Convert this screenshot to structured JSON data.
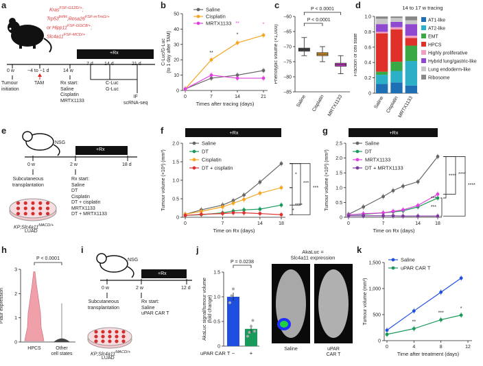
{
  "labels": [
    "a",
    "b",
    "c",
    "d",
    "e",
    "f",
    "g",
    "h",
    "i",
    "j",
    "k"
  ],
  "panel_a": {
    "genotype": [
      "Kras",
      "FSF-G12D/+",
      "Trp53",
      "frt/frt",
      "Rosa26",
      "FSF-mTmG/+",
      "or Hipp11",
      "FSF-GGC8/+",
      "Slc4a11",
      "FSF-MCD/+"
    ],
    "timeline_ticks": [
      "0 w",
      "~4 to ~1 d",
      "14 w",
      "7 d",
      "14 d",
      "21 d"
    ],
    "rx": "+Rx",
    "events": {
      "tumour": "Tumour\ninitiation",
      "tam": "TAM",
      "rx_start": "Rx start:\nSaline\nCisplatin\nMRTX1133",
      "cluc": "C-Luc\nG-Luc",
      "if": "IF\nscRNA-seq"
    }
  },
  "panel_e": {
    "nsg": "NSG",
    "ticks": [
      "0 w",
      "2 w",
      "18 d"
    ],
    "rx": "+Rx",
    "sub": "Subcutaneous\ntransplantation",
    "rx_start": "Rx start:\nSaline\nDT\nCisplatin\nDT + cisplatin\nMRTX1133\nDT + MRTX1133",
    "cells": "KP;Slc4a11",
    "cells_sup": "MACD/+",
    "cells2": "LUAD"
  },
  "panel_i": {
    "nsg": "NSG",
    "ticks": [
      "0 w",
      "2 w",
      "12 d"
    ],
    "rx": "+Rx",
    "sub": "Subcutaneous\ntransplantation",
    "rx_start": "Rx start:\nSaline\nuPAR CAR T",
    "cells": "KP;Slc4a11",
    "cells_sup": "MACD/+",
    "cells2": "LUAD"
  },
  "colors": {
    "saline": "#666666",
    "cisplatin": "#f5a623",
    "mrtx": "#e040e0",
    "dt": "#1a9a5a",
    "dtcis": "#e03030",
    "dtmrtx": "#7a3a9a",
    "blue": "#1f4fe0",
    "green": "#1a9a5a",
    "violin": "#f0a0a8"
  },
  "chart_data": [
    {
      "id": "b",
      "type": "line",
      "ylabel": "C-Luc/G-Luc\n(to 1 day after TAM)",
      "xlabel": "Times after tracing (days)",
      "x": [
        0,
        7,
        14,
        21
      ],
      "xticks": [
        "0",
        "7",
        "14",
        "21"
      ],
      "ylim": [
        0,
        50
      ],
      "yticks": [
        "0",
        "10",
        "20",
        "30",
        "40",
        "50"
      ],
      "series": [
        {
          "name": "Saline",
          "color": "saline",
          "values": [
            1,
            8,
            10,
            13
          ]
        },
        {
          "name": "Cisplatin",
          "color": "cisplatin",
          "values": [
            1,
            20,
            31,
            36
          ]
        },
        {
          "name": "MRTX1133",
          "color": "mrtx",
          "values": [
            1,
            10,
            8,
            8
          ]
        }
      ],
      "annotations": [
        "**",
        "*",
        "*",
        "**",
        "*"
      ]
    },
    {
      "id": "c",
      "type": "box",
      "ylabel": "Phenotypic volume (×1,000)",
      "categories": [
        "Saline",
        "Cisplatin",
        "MRTX1133"
      ],
      "ylim": [
        -85,
        -60
      ],
      "yticks": [
        "−85",
        "−80",
        "−75",
        "−70",
        "−65",
        "−60"
      ],
      "boxes": [
        {
          "median": -71,
          "q1": -71.5,
          "q3": -70.5,
          "lo": -73,
          "hi": -67,
          "color": "#555555"
        },
        {
          "median": -72.5,
          "q1": -73,
          "q3": -72,
          "lo": -75,
          "hi": -70,
          "color": "#f5a623"
        },
        {
          "median": -76,
          "q1": -76.5,
          "q3": -75.5,
          "lo": -79,
          "hi": -73,
          "color": "#e040e0"
        }
      ],
      "annotations": [
        "P < 0.0001",
        "P < 0.0001"
      ]
    },
    {
      "id": "d",
      "type": "bar",
      "title": "14 to 17 w tracing",
      "ylabel": "Fraction of cell state",
      "categories": [
        "Saline",
        "Cisplatin",
        "MRTX1133"
      ],
      "ylim": [
        0,
        1
      ],
      "yticks": [
        "0",
        "0.2",
        "0.4",
        "0.6",
        "0.8",
        "1.0"
      ],
      "series": [
        {
          "name": "AT1-like",
          "color": "#1f6fb4",
          "values": [
            0.12,
            0.14,
            0.1
          ]
        },
        {
          "name": "AT2-like",
          "color": "#2bb0c8",
          "values": [
            0.12,
            0.15,
            0.32
          ]
        },
        {
          "name": "EMT",
          "color": "#3aa845",
          "values": [
            0.04,
            0.12,
            0.2
          ]
        },
        {
          "name": "HPCS",
          "color": "#e0302a",
          "values": [
            0.5,
            0.42,
            0.1
          ]
        },
        {
          "name": "Highly proliferative",
          "color": "#f0a0c0",
          "values": [
            0.02,
            0.03,
            0.03
          ]
        },
        {
          "name": "Hybrid lung/gastric-like",
          "color": "#9048d0",
          "values": [
            0.1,
            0.07,
            0.15
          ]
        },
        {
          "name": "Lung endoderm-like",
          "color": "#c8c8c8",
          "values": [
            0.07,
            0.05,
            0.05
          ]
        },
        {
          "name": "Ribosome",
          "color": "#888888",
          "values": [
            0.03,
            0.02,
            0.05
          ]
        }
      ]
    },
    {
      "id": "f",
      "type": "line",
      "ylabel": "Tumour volume (×10³) (mm³)",
      "xlabel": "Time on Rx (days)",
      "rx": "+Rx",
      "x": [
        0,
        3,
        7,
        9,
        11,
        14,
        18
      ],
      "xticks": [
        "0",
        "7",
        "14",
        "18"
      ],
      "ylim": [
        0,
        2.0
      ],
      "yticks": [
        "0",
        "0.5",
        "1.0",
        "1.5",
        "2.0"
      ],
      "series": [
        {
          "name": "Saline",
          "color": "saline",
          "values": [
            0.08,
            0.2,
            0.33,
            0.45,
            0.6,
            0.95,
            1.45
          ]
        },
        {
          "name": "DT",
          "color": "dt",
          "values": [
            0.05,
            0.07,
            0.12,
            0.17,
            0.2,
            0.22,
            0.33
          ]
        },
        {
          "name": "Cisplatin",
          "color": "cisplatin",
          "values": [
            0.08,
            0.16,
            0.28,
            0.38,
            0.48,
            0.65,
            0.8
          ]
        },
        {
          "name": "DT + cisplatin",
          "color": "dtcis",
          "values": [
            0.05,
            0.08,
            0.1,
            0.12,
            0.12,
            0.1,
            0.07
          ]
        }
      ],
      "annotations": [
        "*",
        "***",
        "***",
        "****",
        "*"
      ]
    },
    {
      "id": "g",
      "type": "line",
      "ylabel": "Tumour volume (×10³) (mm³)",
      "xlabel": "Time on Rx (days)",
      "rx": "+Rx",
      "x": [
        0,
        3,
        7,
        9,
        11,
        14,
        18
      ],
      "xticks": [
        "0",
        "7",
        "14",
        "18"
      ],
      "ylim": [
        0,
        2.5
      ],
      "yticks": [
        "0",
        "0.5",
        "1.0",
        "1.5",
        "2.0",
        "2.5"
      ],
      "series": [
        {
          "name": "Saline",
          "color": "saline",
          "values": [
            0.1,
            0.35,
            0.7,
            0.9,
            1.05,
            1.2,
            2.05
          ]
        },
        {
          "name": "DT",
          "color": "dt",
          "values": [
            0.08,
            0.1,
            0.15,
            0.18,
            0.22,
            0.35,
            0.65
          ]
        },
        {
          "name": "MRTX1133",
          "color": "mrtx",
          "values": [
            0.08,
            0.12,
            0.15,
            0.2,
            0.25,
            0.4,
            0.78
          ]
        },
        {
          "name": "DT + MRTX1133",
          "color": "dtmrtx",
          "values": [
            0.05,
            0.05,
            0.05,
            0.05,
            0.04,
            0.04,
            0.04
          ]
        }
      ],
      "annotations": [
        "****",
        "****",
        "****",
        "***",
        "***"
      ]
    },
    {
      "id": "h",
      "type": "violin",
      "ylabel": "Plaur expression",
      "categories": [
        "HPCS",
        "Other\ncell states"
      ],
      "ylim": [
        0,
        3
      ],
      "yticks": [
        "0",
        "1",
        "2",
        "3"
      ],
      "annotations": [
        "P < 0.0001"
      ]
    },
    {
      "id": "j",
      "type": "bar",
      "ylabel": "AkaLuc signal/tumour volume\n(fold change)",
      "xlabel": "uPAR CAR T",
      "categories": [
        "−",
        "+"
      ],
      "values": [
        1.0,
        0.35
      ],
      "colors": [
        "#1f4fe0",
        "#1a9a5a"
      ],
      "ylim": [
        0,
        1.5
      ],
      "yticks": [
        "0",
        "0.5",
        "1.0",
        "1.5"
      ],
      "annotations": [
        "P = 0.0238"
      ],
      "image_title": "AkaLuc =\nSlc4a11 expression",
      "image_labels": [
        "Saline",
        "uPAR\nCAR T"
      ]
    },
    {
      "id": "k",
      "type": "line",
      "ylabel": "Tumour volume (mm³)",
      "xlabel": "Time after treatment (days)",
      "x": [
        0,
        4,
        8,
        11
      ],
      "xticks": [
        "0",
        "4",
        "8",
        "12"
      ],
      "ylim": [
        0,
        1500
      ],
      "yticks": [
        "0",
        "500",
        "1,000",
        "1,500"
      ],
      "series": [
        {
          "name": "Saline",
          "color": "blue",
          "values": [
            200,
            570,
            930,
            1200
          ]
        },
        {
          "name": "uPAR CAR T",
          "color": "green",
          "values": [
            120,
            230,
            400,
            490
          ]
        }
      ],
      "annotations": [
        "**",
        "***",
        "*"
      ]
    }
  ]
}
